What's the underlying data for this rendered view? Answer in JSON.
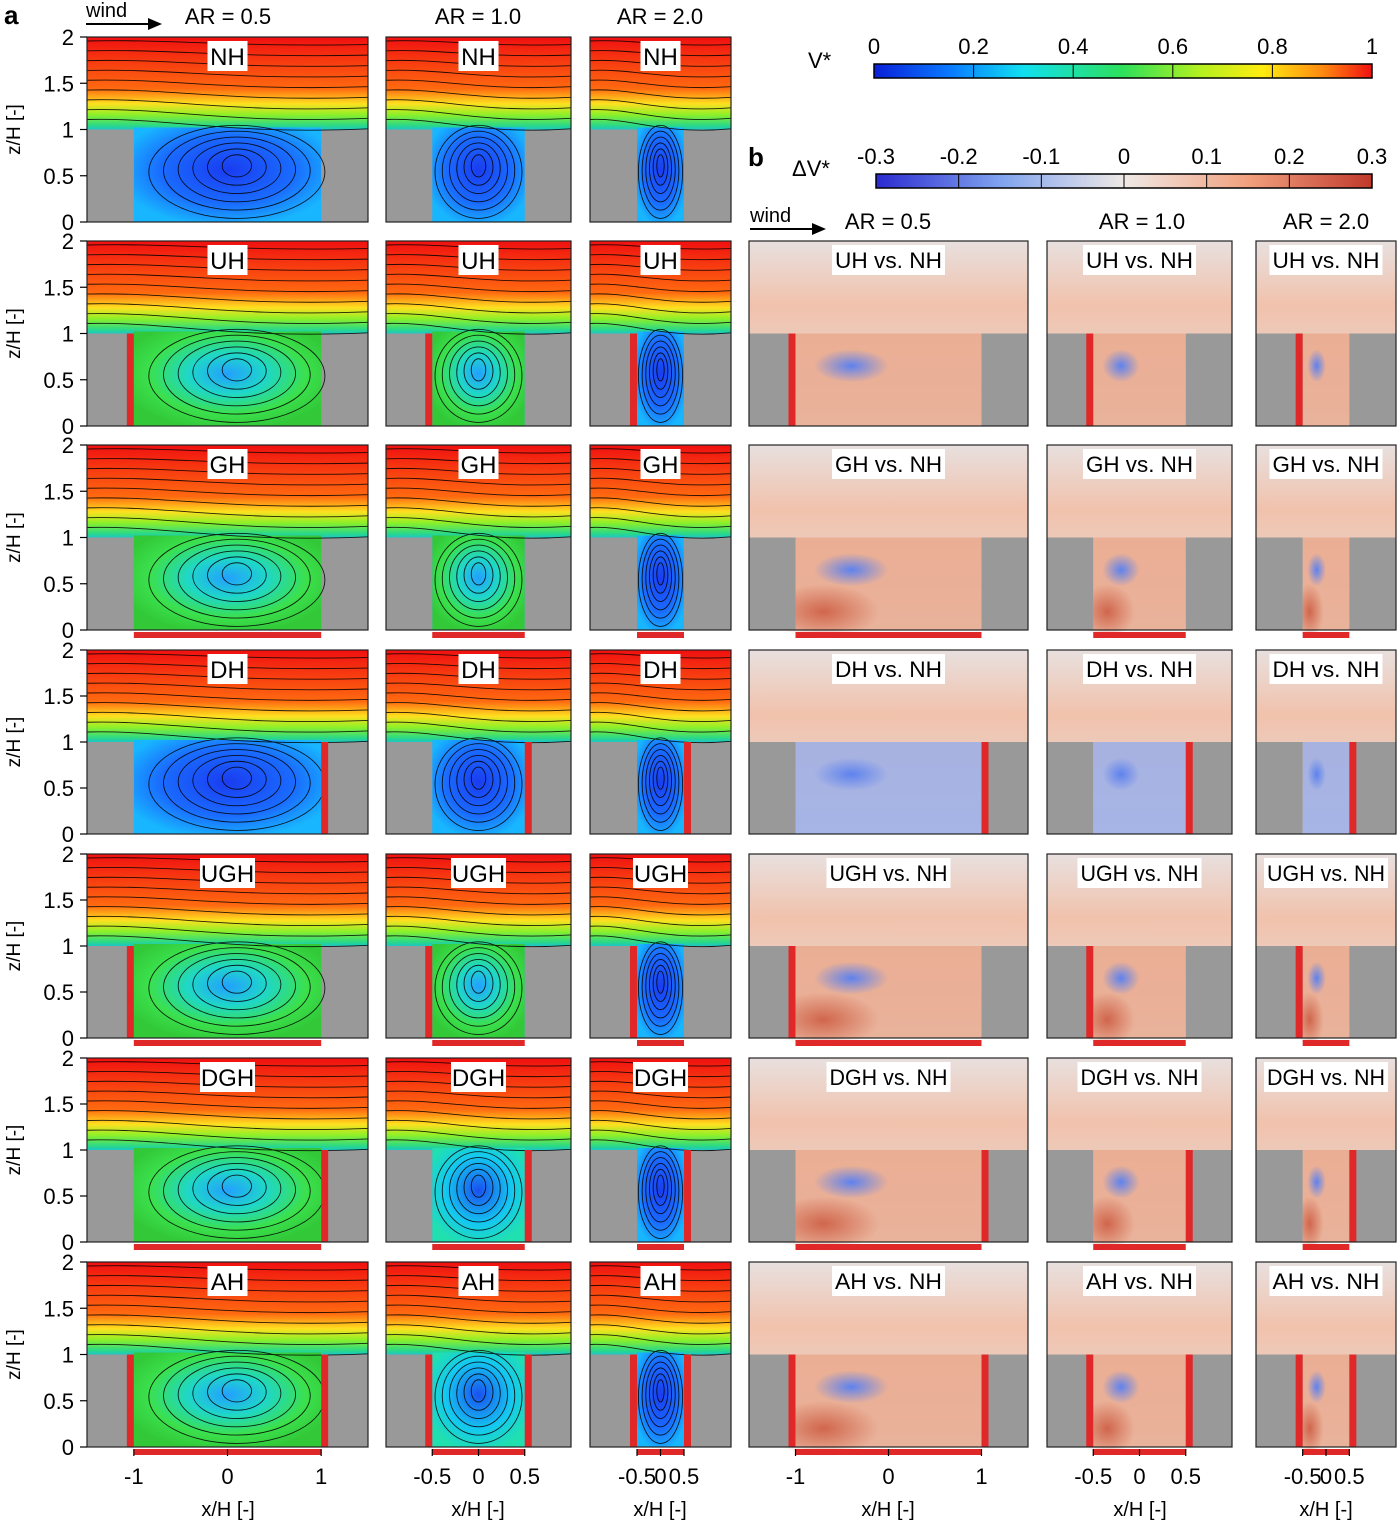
{
  "panel_a": {
    "label": "a",
    "wind_label": "wind",
    "column_titles": [
      "AR = 0.5",
      "AR = 1.0",
      "AR = 2.0"
    ],
    "row_labels": [
      "NH",
      "UH",
      "GH",
      "DH",
      "UGH",
      "DGH",
      "AH"
    ],
    "ylabel": "z/H [-]",
    "xlabel": "x/H [-]",
    "yticks": [
      "0",
      "0.5",
      "1",
      "1.5",
      "2"
    ],
    "xticks": [
      [
        "-1",
        "0",
        "1"
      ],
      [
        "-0.5",
        "0",
        "0.5"
      ],
      [
        "-0.5",
        "0",
        "0.5"
      ]
    ],
    "colorbar": {
      "label": "V*",
      "ticks": [
        "0",
        "0.2",
        "0.4",
        "0.6",
        "0.8",
        "1"
      ]
    }
  },
  "panel_b": {
    "label": "b",
    "wind_label": "wind",
    "column_titles": [
      "AR = 0.5",
      "AR = 1.0",
      "AR = 2.0"
    ],
    "row_labels": [
      "UH vs. NH",
      "GH vs. NH",
      "DH vs. NH",
      "UGH vs. NH",
      "DGH vs. NH",
      "AH vs. NH"
    ],
    "xlabel": "x/H [-]",
    "xticks": [
      [
        "-1",
        "0",
        "1"
      ],
      [
        "-0.5",
        "0",
        "0.5"
      ],
      [
        "-0.5",
        "0",
        "0.5"
      ]
    ],
    "colorbar": {
      "label": "ΔV*",
      "ticks": [
        "-0.3",
        "-0.2",
        "-0.1",
        "0",
        "0.1",
        "0.2",
        "0.3"
      ]
    }
  },
  "chart_data": [
    {
      "type": "heatmap",
      "panel": "a",
      "quantity": "V*",
      "xlabel": "x/H [-]",
      "ylabel": "z/H [-]",
      "ylim": [
        0,
        2
      ],
      "xlim_by_aspect_ratio": {
        "0.5": [
          -1.5,
          1.5
        ],
        "1.0": [
          -1.0,
          1.0
        ],
        "2.0": [
          -0.75,
          0.75
        ]
      },
      "aspect_ratios": [
        0.5,
        1.0,
        2.0
      ],
      "cases": [
        "NH",
        "UH",
        "GH",
        "DH",
        "UGH",
        "DGH",
        "AH"
      ],
      "color_range": [
        0,
        1
      ],
      "canyon_half_width_by_aspect_ratio": {
        "0.5": 1.0,
        "1.0": 0.5,
        "2.0": 0.25
      },
      "building_height": 1.0
    },
    {
      "type": "heatmap",
      "panel": "b",
      "quantity": "ΔV*",
      "xlabel": "x/H [-]",
      "ylim": [
        0,
        2
      ],
      "comparisons": [
        "UH vs. NH",
        "GH vs. NH",
        "DH vs. NH",
        "UGH vs. NH",
        "DGH vs. NH",
        "AH vs. NH"
      ],
      "aspect_ratios": [
        0.5,
        1.0,
        2.0
      ],
      "color_range": [
        -0.3,
        0.3
      ]
    }
  ],
  "colors": {
    "building": "#999999",
    "green_surface": "#e02828",
    "frame": "#222222"
  }
}
